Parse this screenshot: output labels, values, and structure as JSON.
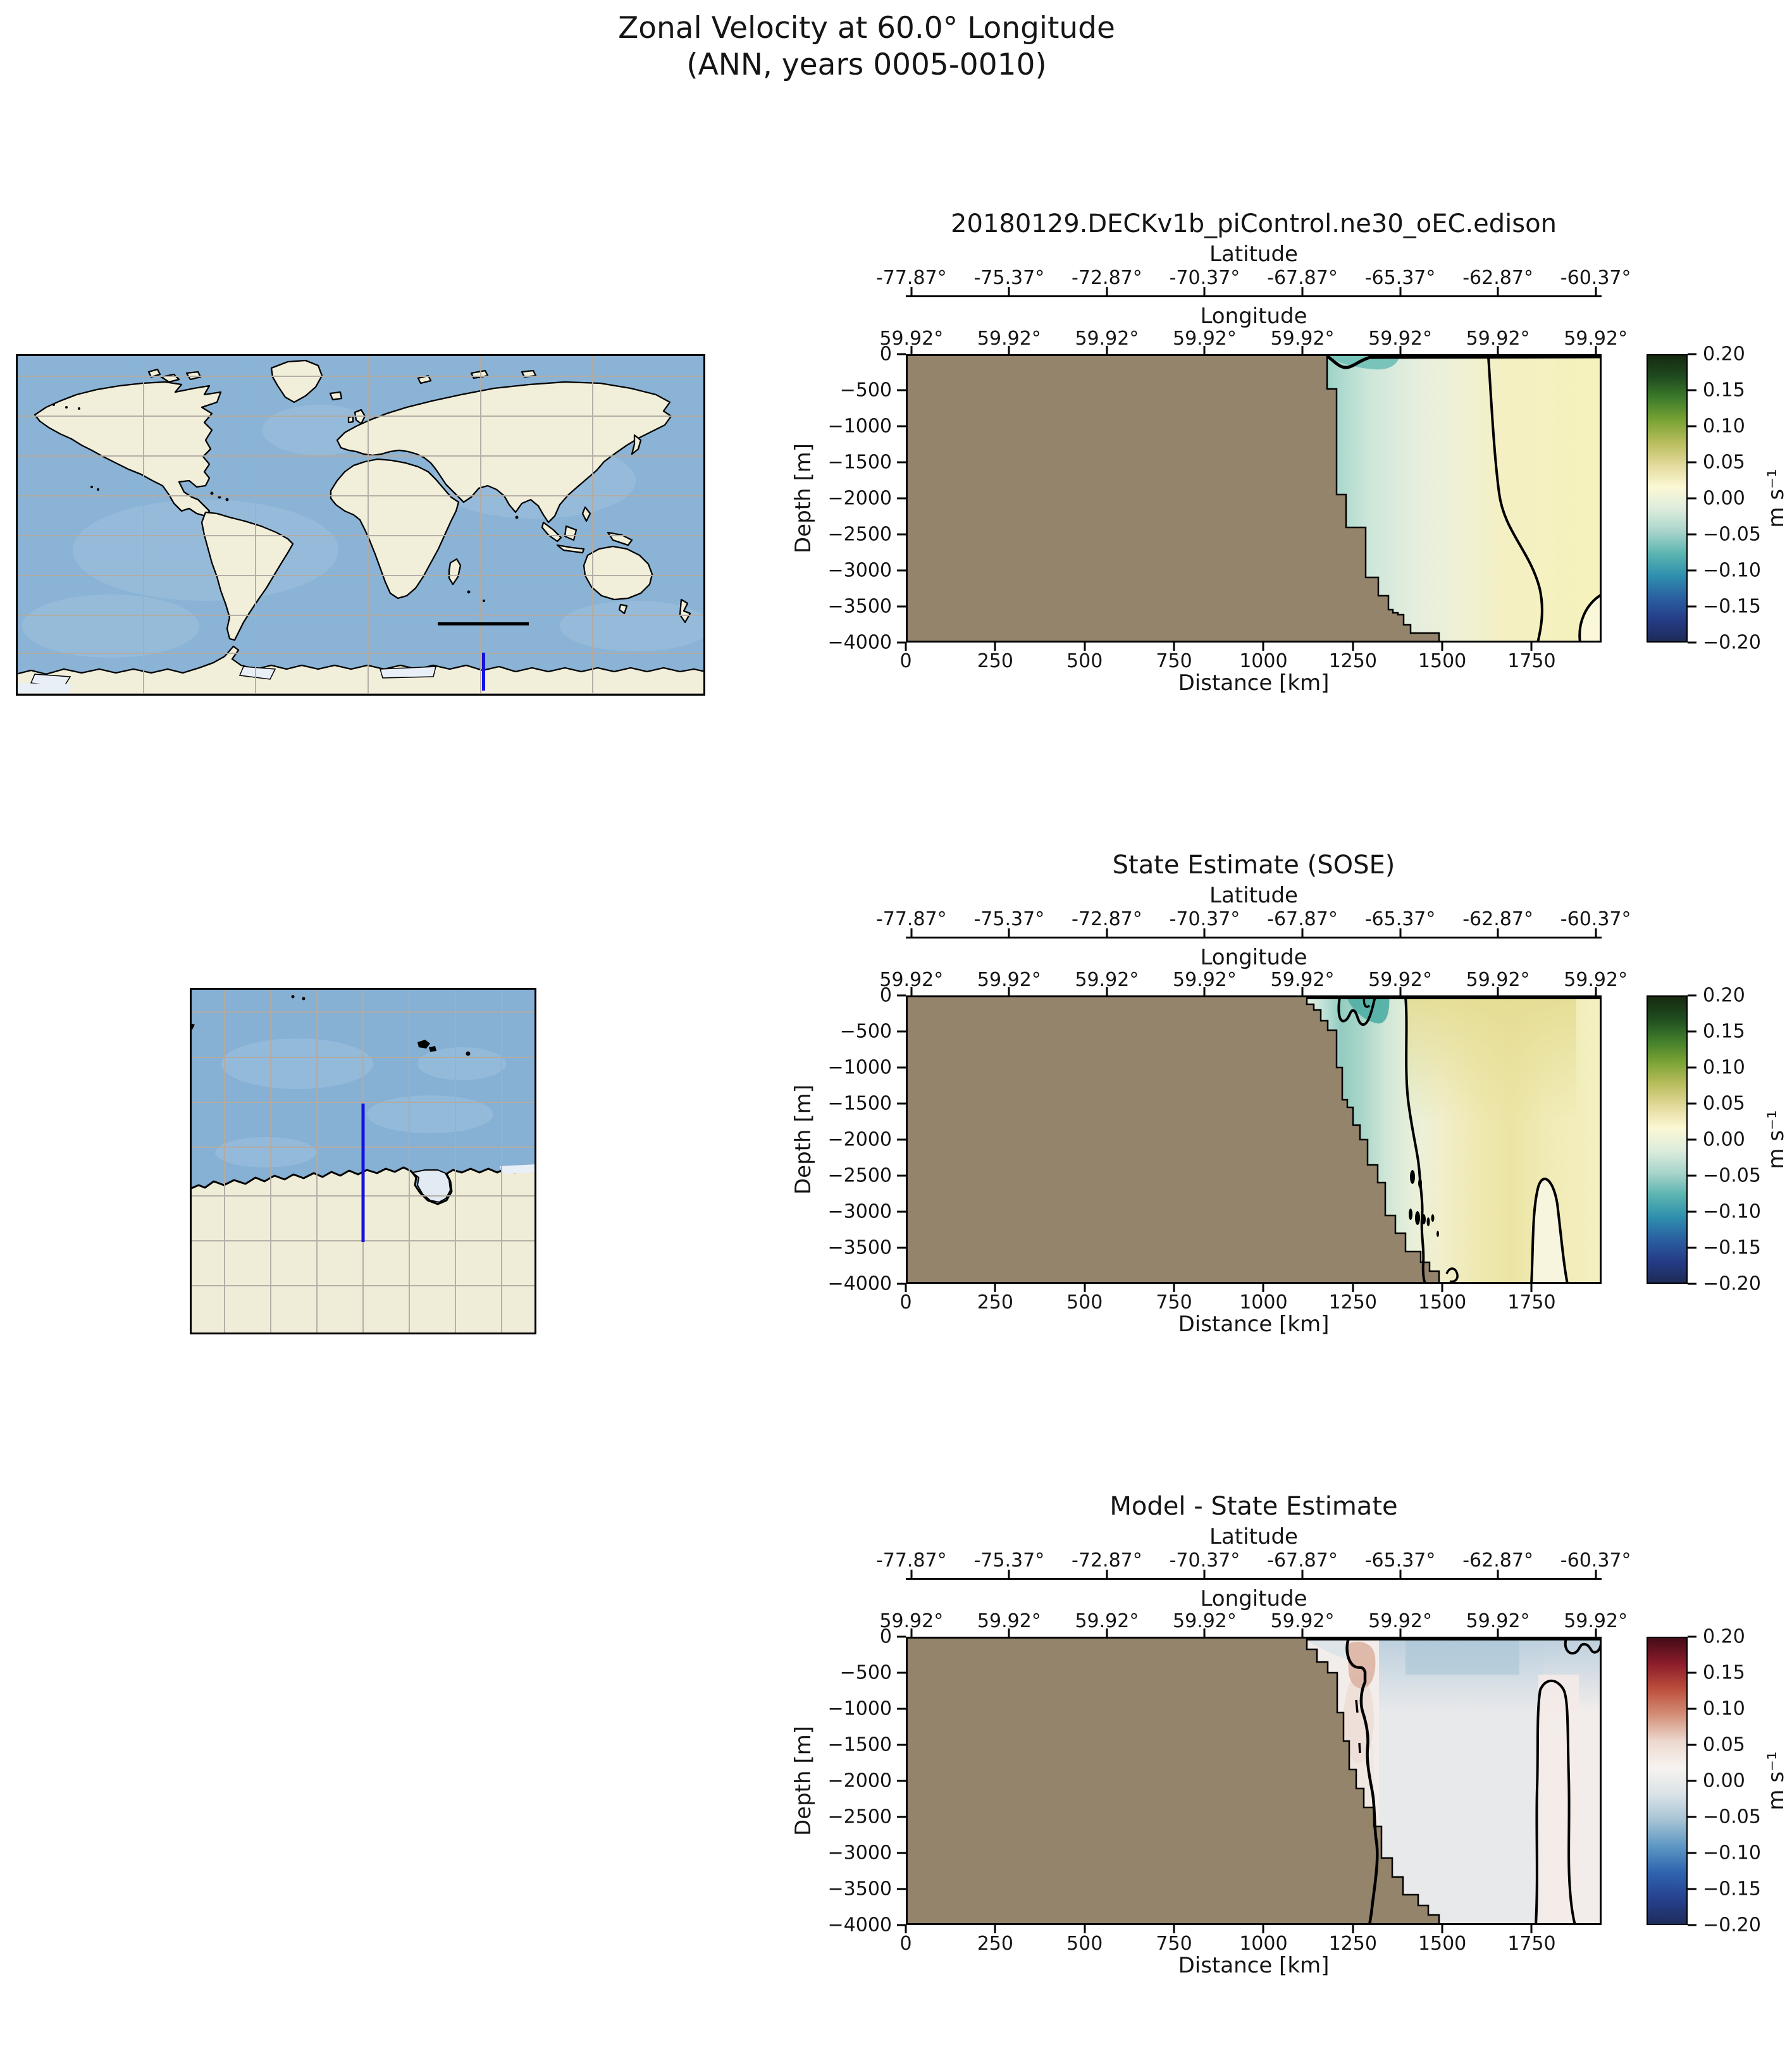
{
  "figure": {
    "title_line1": "Zonal Velocity at 60.0° Longitude",
    "title_line2": "(ANN, years 0005-0010)"
  },
  "panels": [
    {
      "title": "20180129.DECKv1b_piControl.ne30_oEC.edison"
    },
    {
      "title": "State Estimate (SOSE)"
    },
    {
      "title": "Model - State Estimate"
    }
  ],
  "axes": {
    "lat_label": "Latitude",
    "lat_ticks": [
      "-77.87°",
      "-75.37°",
      "-72.87°",
      "-70.37°",
      "-67.87°",
      "-65.37°",
      "-62.87°",
      "-60.37°"
    ],
    "lon_label": "Longitude",
    "lon_ticks": [
      "59.92°",
      "59.92°",
      "59.92°",
      "59.92°",
      "59.92°",
      "59.92°",
      "59.92°",
      "59.92°"
    ],
    "x_label": "Distance [km]",
    "x_ticks": [
      "0",
      "250",
      "500",
      "750",
      "1000",
      "1250",
      "1500",
      "1750"
    ],
    "y_label": "Depth [m]",
    "y_ticks": [
      "0",
      "−500",
      "−1000",
      "−1500",
      "−2000",
      "−2500",
      "−3000",
      "−3500",
      "−4000"
    ],
    "colorbar_ticks": [
      "0.20",
      "0.15",
      "0.10",
      "0.05",
      "0.00",
      "−0.05",
      "−0.10",
      "−0.15",
      "−0.20"
    ],
    "colorbar_unit": "m s⁻¹"
  },
  "colors": {
    "section_land": "#94846b",
    "map_ocean": "#8ab3d5",
    "map_land": "#f1eeda",
    "map_grid": "#b3aca4",
    "map_ice": "#e9eff7",
    "transect_highlight": "#1414dd",
    "transect_other": "#000000",
    "cmap_velocity": [
      "#16270f",
      "#1e4a1e",
      "#3f7c2b",
      "#7aa335",
      "#b9bd5d",
      "#e3da9d",
      "#fbf8d5",
      "#dcecdc",
      "#a8d4cb",
      "#5bb4b0",
      "#2f8fae",
      "#2a5fa0",
      "#253c85",
      "#1d2a55"
    ],
    "cmap_diff": [
      "#3f0b16",
      "#8a1b2b",
      "#bc4f3c",
      "#d4907a",
      "#ecd9cf",
      "#f7f3f0",
      "#dae3e7",
      "#a6c3d4",
      "#5d97c4",
      "#2f63ae",
      "#27418e",
      "#1d2b58"
    ]
  },
  "chart_data": [
    {
      "type": "heatmap",
      "panel": "20180129.DECKv1b_piControl.ne30_oEC.edison",
      "field": "zonal velocity section along 60.0° longitude",
      "units": "m s⁻¹",
      "x_axis": {
        "label": "Distance [km]",
        "range": [
          0,
          1946
        ],
        "ticks": [
          0,
          250,
          500,
          750,
          1000,
          1250,
          1500,
          1750
        ]
      },
      "y_axis": {
        "label": "Depth [m]",
        "range": [
          -4000,
          0
        ],
        "ticks": [
          0,
          -500,
          -1000,
          -1500,
          -2000,
          -2500,
          -3000,
          -3500,
          -4000
        ]
      },
      "latitude_ticks_deg": [
        -77.87,
        -75.37,
        -72.87,
        -70.37,
        -67.87,
        -65.37,
        -62.87,
        -60.37
      ],
      "longitude_ticks_deg": [
        59.92,
        59.92,
        59.92,
        59.92,
        59.92,
        59.92,
        59.92,
        59.92
      ],
      "color_scale": {
        "min": -0.2,
        "max": 0.2,
        "colormap": "green-yellow-cream-teal-navy diverging"
      },
      "bathymetry_steps_km_depth": [
        [
          1180,
          -500
        ],
        [
          1205,
          -1950
        ],
        [
          1240,
          -2400
        ],
        [
          1285,
          -3100
        ],
        [
          1320,
          -3350
        ],
        [
          1350,
          -3600
        ],
        [
          1400,
          -3870
        ],
        [
          1480,
          -4000
        ]
      ],
      "features": [
        {
          "name": "weak westward flow over slope",
          "approx_value": -0.03,
          "extent_km": [
            1180,
            1630
          ]
        },
        {
          "name": "zero velocity contour",
          "surface_km": 1630,
          "bottom_km": 1790
        },
        {
          "name": "weak eastward flow offshore",
          "approx_value": 0.02,
          "extent_km": [
            1630,
            1946
          ]
        },
        {
          "name": "shallow westward surface jet at shelf break",
          "approx_value": -0.06,
          "extent_km": [
            1180,
            1320
          ],
          "depth_m": [
            0,
            -200
          ]
        }
      ]
    },
    {
      "type": "heatmap",
      "panel": "State Estimate (SOSE)",
      "field": "zonal velocity section along 60.0° longitude",
      "units": "m s⁻¹",
      "x_axis": {
        "label": "Distance [km]",
        "range": [
          0,
          1946
        ],
        "ticks": [
          0,
          250,
          500,
          750,
          1000,
          1250,
          1500,
          1750
        ]
      },
      "y_axis": {
        "label": "Depth [m]",
        "range": [
          -4000,
          0
        ],
        "ticks": [
          0,
          -500,
          -1000,
          -1500,
          -2000,
          -2500,
          -3000,
          -3500,
          -4000
        ]
      },
      "latitude_ticks_deg": [
        -77.87,
        -75.37,
        -72.87,
        -70.37,
        -67.87,
        -65.37,
        -62.87,
        -60.37
      ],
      "longitude_ticks_deg": [
        59.92,
        59.92,
        59.92,
        59.92,
        59.92,
        59.92,
        59.92,
        59.92
      ],
      "color_scale": {
        "min": -0.2,
        "max": 0.2,
        "colormap": "green-yellow-cream-teal-navy diverging"
      },
      "bathymetry_steps_km_depth": [
        [
          1122,
          -120
        ],
        [
          1180,
          -500
        ],
        [
          1205,
          -1000
        ],
        [
          1250,
          -1550
        ],
        [
          1290,
          -2000
        ],
        [
          1340,
          -2600
        ],
        [
          1395,
          -3300
        ],
        [
          1480,
          -3850
        ],
        [
          1490,
          -4000
        ]
      ],
      "features": [
        {
          "name": "strong westward slope jet",
          "approx_value": -0.09,
          "extent_km": [
            1230,
            1330
          ],
          "depth_m": [
            0,
            -500
          ]
        },
        {
          "name": "zero velocity contour (wiggly)",
          "surface_km": 1395,
          "bottom_km": 1460
        },
        {
          "name": "eastward flow offshore",
          "approx_value": 0.04,
          "extent_km": [
            1450,
            1946
          ],
          "depth_m": [
            0,
            -1500
          ]
        },
        {
          "name": "small closed contour eddies near slope",
          "depth_m": [
            -2450,
            -3400
          ],
          "extent_km": [
            1410,
            1600
          ]
        },
        {
          "name": "closed weak-flow contour near bottom right",
          "extent_km": [
            1750,
            1930
          ],
          "depth_m": [
            -2550,
            -4000
          ]
        }
      ]
    },
    {
      "type": "heatmap",
      "panel": "Model - State Estimate",
      "field": "zonal velocity difference section along 60.0° longitude",
      "units": "m s⁻¹",
      "x_axis": {
        "label": "Distance [km]",
        "range": [
          0,
          1946
        ],
        "ticks": [
          0,
          250,
          500,
          750,
          1000,
          1250,
          1500,
          1750
        ]
      },
      "y_axis": {
        "label": "Depth [m]",
        "range": [
          -4000,
          0
        ],
        "ticks": [
          0,
          -500,
          -1000,
          -1500,
          -2000,
          -2500,
          -3000,
          -3500,
          -4000
        ]
      },
      "latitude_ticks_deg": [
        -77.87,
        -75.37,
        -72.87,
        -70.37,
        -67.87,
        -65.37,
        -62.87,
        -60.37
      ],
      "longitude_ticks_deg": [
        59.92,
        59.92,
        59.92,
        59.92,
        59.92,
        59.92,
        59.92,
        59.92
      ],
      "color_scale": {
        "min": -0.2,
        "max": 0.2,
        "colormap": "red-white-blue diverging"
      },
      "features": [
        {
          "name": "positive (red) bias at shelf break",
          "approx_value": 0.04,
          "extent_km": [
            1240,
            1350
          ],
          "depth_m": [
            -100,
            -700
          ]
        },
        {
          "name": "negative (blue) bias offshore near surface",
          "approx_value": -0.04,
          "extent_km": [
            1400,
            1946
          ],
          "depth_m": [
            0,
            -600
          ]
        },
        {
          "name": "near-zero difference at depth",
          "approx_value": -0.01
        },
        {
          "name": "zero contour hugging slope",
          "surface_km": 1240,
          "bottom_km": 1300
        },
        {
          "name": "tall closed zero contour offshore",
          "extent_km": [
            1760,
            1930
          ],
          "depth_m": [
            -700,
            -4000
          ]
        }
      ]
    }
  ]
}
